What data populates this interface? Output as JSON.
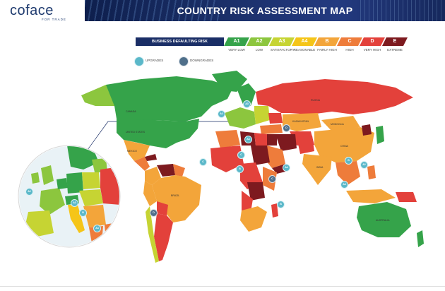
{
  "header": {
    "logo_text": "coface",
    "logo_tagline": "FOR TRADE",
    "title": "COUNTRY RISK ASSESSMENT MAP"
  },
  "legend": {
    "title": "BUSINESS DEFAULTING RISK",
    "categories": [
      {
        "code": "A1",
        "desc": "VERY LOW",
        "color": "#35a34a"
      },
      {
        "code": "A2",
        "desc": "LOW",
        "color": "#8cc63e"
      },
      {
        "code": "A3",
        "desc": "SATISFACTORY",
        "color": "#c6d433"
      },
      {
        "code": "A4",
        "desc": "REASONABLE",
        "color": "#f5c518"
      },
      {
        "code": "B",
        "desc": "FAIRLY HIGH",
        "color": "#f3a53a"
      },
      {
        "code": "C",
        "desc": "HIGH",
        "color": "#ee7c3b"
      },
      {
        "code": "D",
        "desc": "VERY HIGH",
        "color": "#e3413b"
      },
      {
        "code": "E",
        "desc": "EXTREME",
        "color": "#7d1a1f"
      }
    ],
    "upgrades_label": "UPGRADES",
    "downgrades_label": "DOWNGRADES",
    "upgrade_color": "#5bb8c9",
    "downgrade_color": "#4f6f8a"
  },
  "map": {
    "country_labels": [
      "CANADA",
      "UNITED STATES",
      "MEXICO",
      "BRAZIL",
      "RUSSIA",
      "KAZAKHSTAN",
      "MONGOLIA",
      "CHINA",
      "INDIA",
      "AUSTRALIA"
    ],
    "badges": [
      {
        "code": "A2",
        "type": "up"
      },
      {
        "code": "A3",
        "type": "up"
      },
      {
        "code": "A4",
        "type": "up"
      },
      {
        "code": "B",
        "type": "up"
      },
      {
        "code": "C",
        "type": "up"
      },
      {
        "code": "D",
        "type": "down"
      },
      {
        "code": "C",
        "type": "up"
      },
      {
        "code": "B",
        "type": "up"
      },
      {
        "code": "A4",
        "type": "up"
      },
      {
        "code": "A2",
        "type": "up"
      },
      {
        "code": "A3",
        "type": "up"
      },
      {
        "code": "D",
        "type": "down"
      },
      {
        "code": "A4",
        "type": "up"
      },
      {
        "code": "C",
        "type": "down"
      },
      {
        "code": "B",
        "type": "up"
      },
      {
        "code": "A2",
        "type": "up"
      },
      {
        "code": "B",
        "type": "up"
      },
      {
        "code": "A4",
        "type": "up"
      }
    ]
  }
}
